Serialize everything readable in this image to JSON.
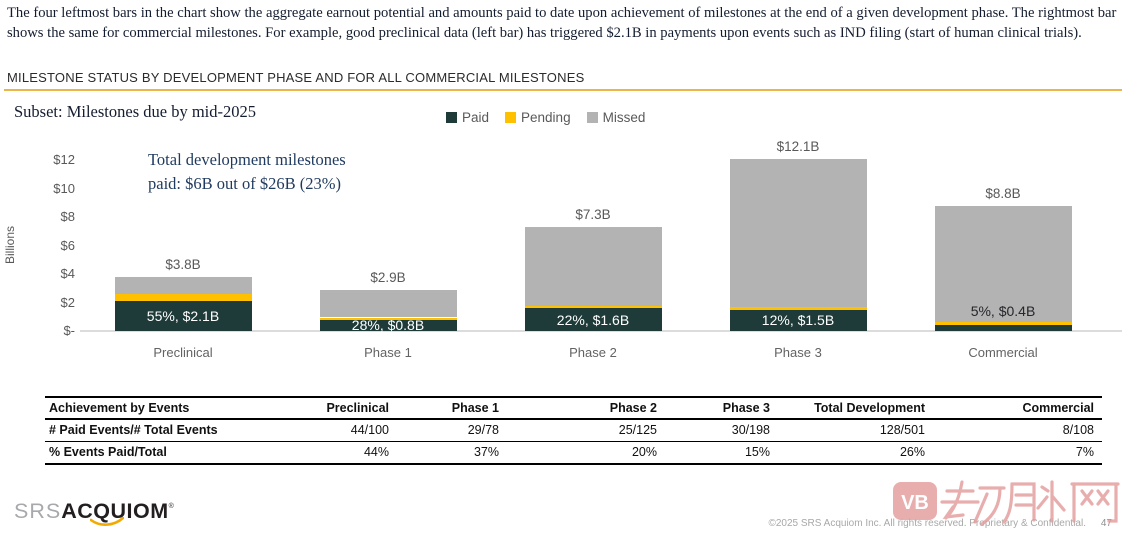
{
  "header": {
    "paragraph": "The four leftmost bars in the chart show the aggregate earnout potential and amounts paid to date upon achievement of milestones at the end of a given development phase. The rightmost bar shows the same for commercial milestones. For example, good preclinical data (left bar) has triggered $2.1B in payments upon events such as IND filing (start of human clinical trials).",
    "title": "MILESTONE STATUS BY DEVELOPMENT PHASE AND FOR ALL COMMERCIAL MILESTONES"
  },
  "chart": {
    "subset_label": "Subset: Milestones due by mid-2025",
    "annotation": "Total development milestones\npaid: $6B out of $26B (23%)",
    "y_axis_label": "Billions"
  },
  "chart_data": {
    "type": "bar",
    "subtype": "stacked",
    "title": "Milestone status by development phase and for all commercial milestones",
    "categories": [
      "Preclinical",
      "Phase 1",
      "Phase 2",
      "Phase 3",
      "Commercial"
    ],
    "series": [
      {
        "name": "Paid",
        "color": "#1e3b3a",
        "values": [
          2.1,
          0.8,
          1.6,
          1.5,
          0.4
        ]
      },
      {
        "name": "Pending",
        "color": "#ffc000",
        "values": [
          0.5,
          0.15,
          0.15,
          0.2,
          0.2
        ]
      },
      {
        "name": "Missed",
        "color": "#b3b3b3",
        "values": [
          1.2,
          1.95,
          5.55,
          10.4,
          8.2
        ]
      }
    ],
    "totals": [
      3.8,
      2.9,
      7.3,
      12.1,
      8.8
    ],
    "total_labels": [
      "$3.8B",
      "$2.9B",
      "$7.3B",
      "$12.1B",
      "$8.8B"
    ],
    "paid_labels": [
      "55%, $2.1B",
      "28%, $0.8B",
      "22%, $1.6B",
      "12%, $1.5B",
      "5%, $0.4B"
    ],
    "paid_label_mode": [
      "inside",
      "inside",
      "inside",
      "inside",
      "above"
    ],
    "paid_label_colors": {
      "inside": "#ffffff",
      "above": "#26262b"
    },
    "y_ticks": [
      {
        "label": "$12",
        "value": 12
      },
      {
        "label": "$10",
        "value": 10
      },
      {
        "label": "$8",
        "value": 8
      },
      {
        "label": "$6",
        "value": 6
      },
      {
        "label": "$4",
        "value": 4
      },
      {
        "label": "$2",
        "value": 2
      },
      {
        "label": "$-",
        "value": 0
      }
    ],
    "ylim": [
      0,
      12
    ],
    "ylabel": "Billions",
    "legend": [
      {
        "label": "Paid",
        "color": "#1e3b3a"
      },
      {
        "label": "Pending",
        "color": "#ffc000"
      },
      {
        "label": "Missed",
        "color": "#b3b3b3"
      }
    ],
    "legend_position": "top",
    "grid": false
  },
  "table": {
    "columns": [
      "Achievement by Events",
      "Preclinical",
      "Phase 1",
      "Phase 2",
      "Phase 3",
      "Total Development",
      "Commercial"
    ],
    "rows": [
      {
        "label": "# Paid Events/# Total Events",
        "values": [
          "44/100",
          "29/78",
          "25/125",
          "30/198",
          "128/501",
          "8/108"
        ]
      },
      {
        "label": "% Events Paid/Total",
        "values": [
          "44%",
          "37%",
          "20%",
          "15%",
          "26%",
          "7%"
        ]
      }
    ]
  },
  "footer": {
    "logo_srs": "SRS",
    "logo_acquiom": "ACQUIOM",
    "copyright": "©2025 SRS Acquiom Inc. All rights reserved. Proprietary & Confidential.",
    "page_number": "47",
    "watermark_badge": "VB"
  },
  "colors": {
    "paid": "#1e3b3a",
    "pending": "#ffc000",
    "missed": "#b3b3b3",
    "title_rule": "#ecb54a",
    "annotation_text": "#1f3a5f",
    "axis_text": "#595959",
    "watermark": "#e39b9b"
  }
}
